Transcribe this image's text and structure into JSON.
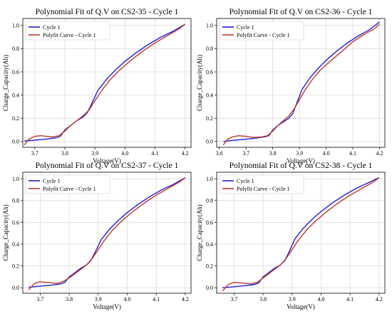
{
  "chart_data": [
    {
      "type": "line",
      "title": "Polynomial Fit of Q.V on CS2-35 - Cycle 1",
      "xlabel": "Voltage(V)",
      "ylabel": "Charge_Capacity(Ah)",
      "xlim": [
        3.66,
        4.22
      ],
      "ylim": [
        -0.05,
        1.06
      ],
      "xticks": [
        3.7,
        3.8,
        3.9,
        4.0,
        4.1,
        4.2
      ],
      "xtick_labels": [
        "3.7",
        "3.8",
        "3.9",
        "4.0",
        "4.1",
        "4.2"
      ],
      "yticks": [
        0.0,
        0.2,
        0.4,
        0.6,
        0.8,
        1.0
      ],
      "ytick_labels": [
        "0.0",
        "0.2",
        "0.4",
        "0.6",
        "0.8",
        "1.0"
      ],
      "grid": true,
      "legend_position": "upper-left",
      "series": [
        {
          "name": "Cycle 1",
          "color": "#1f1fd6",
          "x": [
            3.665,
            3.7,
            3.74,
            3.77,
            3.785,
            3.8,
            3.82,
            3.84,
            3.86,
            3.875,
            3.89,
            3.91,
            3.94,
            3.97,
            4.0,
            4.04,
            4.08,
            4.12,
            4.16,
            4.2
          ],
          "y": [
            0.005,
            0.012,
            0.022,
            0.032,
            0.045,
            0.1,
            0.14,
            0.18,
            0.21,
            0.25,
            0.33,
            0.44,
            0.54,
            0.62,
            0.69,
            0.77,
            0.84,
            0.9,
            0.95,
            1.01
          ]
        },
        {
          "name": "Polyfit Curve - Cycle 1",
          "color": "#c0392b",
          "x": [
            3.665,
            3.68,
            3.7,
            3.72,
            3.74,
            3.76,
            3.78,
            3.8,
            3.82,
            3.84,
            3.86,
            3.88,
            3.9,
            3.92,
            3.95,
            3.98,
            4.02,
            4.06,
            4.1,
            4.14,
            4.18,
            4.2
          ],
          "y": [
            -0.03,
            0.02,
            0.045,
            0.05,
            0.045,
            0.04,
            0.05,
            0.09,
            0.14,
            0.18,
            0.22,
            0.27,
            0.35,
            0.43,
            0.53,
            0.61,
            0.7,
            0.78,
            0.85,
            0.91,
            0.97,
            1.01
          ]
        }
      ]
    },
    {
      "type": "line",
      "title": "Polynomial Fit of Q.V on CS2-36 - Cycle 1",
      "xlabel": "Voltage(V)",
      "ylabel": "Charge_Capacity(Ah)",
      "xlim": [
        3.59,
        4.22
      ],
      "ylim": [
        -0.05,
        1.06
      ],
      "xticks": [
        3.6,
        3.7,
        3.8,
        3.9,
        4.0,
        4.1,
        4.2
      ],
      "xtick_labels": [
        "3.6",
        "3.7",
        "3.8",
        "3.9",
        "4.0",
        "4.1",
        "4.2"
      ],
      "yticks": [
        0.0,
        0.2,
        0.4,
        0.6,
        0.8,
        1.0
      ],
      "ytick_labels": [
        "0.0",
        "0.2",
        "0.4",
        "0.6",
        "0.8",
        "1.0"
      ],
      "grid": true,
      "legend_position": "upper-left",
      "series": [
        {
          "name": "Cycle 1",
          "color": "#1f1fd6",
          "x": [
            3.615,
            3.65,
            3.7,
            3.74,
            3.77,
            3.785,
            3.8,
            3.82,
            3.84,
            3.86,
            3.875,
            3.89,
            3.91,
            3.94,
            3.97,
            4.0,
            4.04,
            4.08,
            4.12,
            4.16,
            4.2
          ],
          "y": [
            0.0,
            0.01,
            0.02,
            0.03,
            0.04,
            0.05,
            0.1,
            0.14,
            0.17,
            0.2,
            0.24,
            0.33,
            0.45,
            0.55,
            0.63,
            0.7,
            0.78,
            0.85,
            0.91,
            0.96,
            1.03
          ]
        },
        {
          "name": "Polyfit Curve - Cycle 1",
          "color": "#c0392b",
          "x": [
            3.615,
            3.63,
            3.65,
            3.67,
            3.7,
            3.73,
            3.76,
            3.78,
            3.8,
            3.82,
            3.84,
            3.86,
            3.88,
            3.9,
            3.92,
            3.95,
            3.98,
            4.02,
            4.06,
            4.1,
            4.14,
            4.18,
            4.2
          ],
          "y": [
            -0.03,
            0.02,
            0.04,
            0.05,
            0.045,
            0.035,
            0.04,
            0.05,
            0.09,
            0.14,
            0.18,
            0.22,
            0.28,
            0.36,
            0.44,
            0.54,
            0.62,
            0.7,
            0.78,
            0.86,
            0.92,
            0.97,
            1.01
          ]
        }
      ]
    },
    {
      "type": "line",
      "title": "Polynomial Fit of Q.V on CS2-37 - Cycle 1",
      "xlabel": "Voltage(V)",
      "ylabel": "Charge_Capacity(Ah)",
      "xlim": [
        3.64,
        4.22
      ],
      "ylim": [
        -0.05,
        1.06
      ],
      "xticks": [
        3.7,
        3.8,
        3.9,
        4.0,
        4.1,
        4.2
      ],
      "xtick_labels": [
        "3.7",
        "3.8",
        "3.9",
        "4.0",
        "4.1",
        "4.2"
      ],
      "yticks": [
        0.0,
        0.2,
        0.4,
        0.6,
        0.8,
        1.0
      ],
      "ytick_labels": [
        "0.0",
        "0.2",
        "0.4",
        "0.6",
        "0.8",
        "1.0"
      ],
      "grid": true,
      "legend_position": "upper-left",
      "series": [
        {
          "name": "Cycle 1",
          "color": "#1f1fd6",
          "x": [
            3.66,
            3.7,
            3.74,
            3.77,
            3.785,
            3.8,
            3.82,
            3.84,
            3.86,
            3.875,
            3.89,
            3.91,
            3.94,
            3.97,
            4.0,
            4.04,
            4.08,
            4.12,
            4.16,
            4.2
          ],
          "y": [
            0.005,
            0.015,
            0.025,
            0.035,
            0.05,
            0.1,
            0.14,
            0.18,
            0.21,
            0.25,
            0.33,
            0.44,
            0.54,
            0.62,
            0.69,
            0.77,
            0.84,
            0.9,
            0.95,
            1.01
          ]
        },
        {
          "name": "Polyfit Curve - Cycle 1",
          "color": "#c0392b",
          "x": [
            3.66,
            3.68,
            3.7,
            3.72,
            3.74,
            3.76,
            3.78,
            3.8,
            3.82,
            3.84,
            3.86,
            3.88,
            3.9,
            3.92,
            3.95,
            3.98,
            4.02,
            4.06,
            4.1,
            4.14,
            4.18,
            4.2
          ],
          "y": [
            -0.02,
            0.04,
            0.055,
            0.05,
            0.045,
            0.04,
            0.06,
            0.09,
            0.13,
            0.17,
            0.21,
            0.27,
            0.35,
            0.43,
            0.53,
            0.61,
            0.7,
            0.78,
            0.85,
            0.91,
            0.97,
            1.01
          ]
        }
      ]
    },
    {
      "type": "line",
      "title": "Polynomial Fit of Q.V on CS2-38 - Cycle 1",
      "xlabel": "Voltage(V)",
      "ylabel": "Charge_Capacity(Ah)",
      "xlim": [
        3.64,
        4.22
      ],
      "ylim": [
        -0.05,
        1.06
      ],
      "xticks": [
        3.7,
        3.8,
        3.9,
        4.0,
        4.1,
        4.2
      ],
      "xtick_labels": [
        "3.7",
        "3.8",
        "3.9",
        "4.0",
        "4.1",
        "4.2"
      ],
      "yticks": [
        0.0,
        0.2,
        0.4,
        0.6,
        0.8,
        1.0
      ],
      "ytick_labels": [
        "0.0",
        "0.2",
        "0.4",
        "0.6",
        "0.8",
        "1.0"
      ],
      "grid": true,
      "legend_position": "upper-left",
      "series": [
        {
          "name": "Cycle 1",
          "color": "#1f1fd6",
          "x": [
            3.66,
            3.7,
            3.74,
            3.77,
            3.785,
            3.8,
            3.82,
            3.84,
            3.86,
            3.875,
            3.89,
            3.91,
            3.94,
            3.97,
            4.0,
            4.04,
            4.08,
            4.12,
            4.16,
            4.2
          ],
          "y": [
            0.0,
            0.01,
            0.02,
            0.03,
            0.045,
            0.1,
            0.14,
            0.18,
            0.21,
            0.25,
            0.33,
            0.45,
            0.55,
            0.63,
            0.7,
            0.78,
            0.85,
            0.91,
            0.96,
            1.01
          ]
        },
        {
          "name": "Polyfit Curve - Cycle 1",
          "color": "#c0392b",
          "x": [
            3.66,
            3.68,
            3.7,
            3.72,
            3.74,
            3.76,
            3.78,
            3.8,
            3.82,
            3.84,
            3.86,
            3.88,
            3.9,
            3.92,
            3.95,
            3.98,
            4.02,
            4.06,
            4.1,
            4.14,
            4.18,
            4.2
          ],
          "y": [
            -0.03,
            0.03,
            0.05,
            0.045,
            0.04,
            0.035,
            0.05,
            0.09,
            0.13,
            0.17,
            0.21,
            0.27,
            0.35,
            0.43,
            0.53,
            0.61,
            0.7,
            0.78,
            0.85,
            0.91,
            0.97,
            1.01
          ]
        }
      ]
    }
  ]
}
